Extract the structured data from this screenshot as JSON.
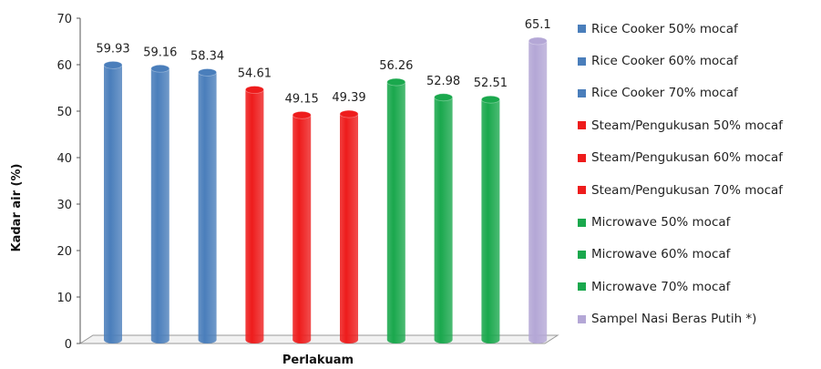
{
  "chart_data": {
    "type": "bar",
    "ylabel": "Kadar air (%)",
    "xlabel": "Perlakuam",
    "ylim": [
      0,
      70
    ],
    "yticks": [
      0,
      10,
      20,
      30,
      40,
      50,
      60,
      70
    ],
    "grid": false,
    "legend_position": "right",
    "series": [
      {
        "name": "Rice Cooker 50% mocaf",
        "value": 59.93,
        "label": "59.93",
        "color": "#4a7ebb"
      },
      {
        "name": "Rice Cooker 60% mocaf",
        "value": 59.16,
        "label": "59.16",
        "color": "#4a7ebb"
      },
      {
        "name": "Rice Cooker 70% mocaf",
        "value": 58.34,
        "label": "58.34",
        "color": "#4a7ebb"
      },
      {
        "name": "Steam/Pengukusan 50% mocaf",
        "value": 54.61,
        "label": "54.61",
        "color": "#ee1c1c"
      },
      {
        "name": "Steam/Pengukusan 60% mocaf",
        "value": 49.15,
        "label": "49.15",
        "color": "#ee1c1c"
      },
      {
        "name": "Steam/Pengukusan 70% mocaf",
        "value": 49.39,
        "label": "49.39",
        "color": "#ee1c1c"
      },
      {
        "name": "Microwave 50% mocaf",
        "value": 56.26,
        "label": "56.26",
        "color": "#1aa84d"
      },
      {
        "name": "Microwave 60% mocaf",
        "value": 52.98,
        "label": "52.98",
        "color": "#1aa84d"
      },
      {
        "name": "Microwave 70% mocaf",
        "value": 52.51,
        "label": "52.51",
        "color": "#1aa84d"
      },
      {
        "name": "Sampel Nasi Beras Putih *)",
        "value": 65.1,
        "label": "65.1",
        "color": "#b4a7d6"
      }
    ]
  }
}
